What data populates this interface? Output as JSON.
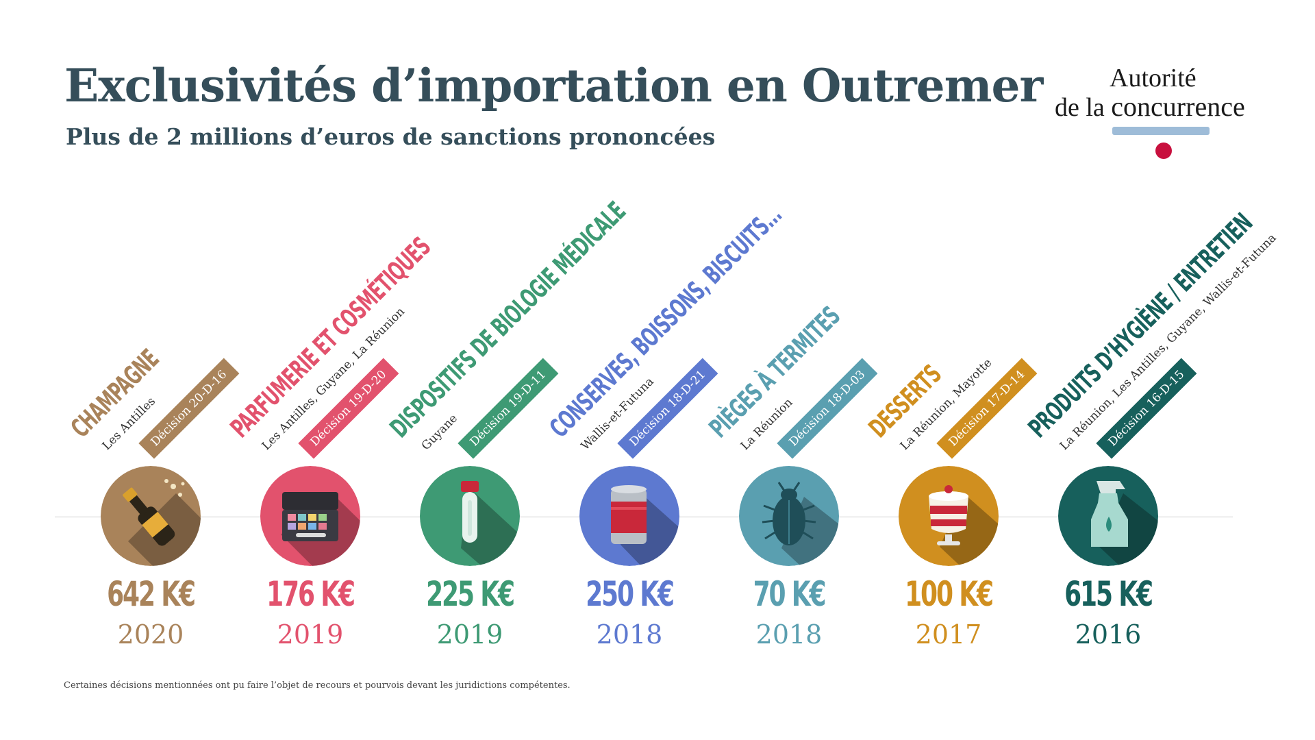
{
  "header": {
    "title": "Exclusivités d’importation en Outremer",
    "subtitle": "Plus de 2 millions d’euros de sanctions prononcées"
  },
  "logo": {
    "line1": "Autorité",
    "line2_small": "de la",
    "line2_big": "concurrence",
    "colors": {
      "bar": "#9ebcd8",
      "dot": "#c8103e"
    }
  },
  "items": [
    {
      "category": "CHAMPAGNE",
      "territory": "Les Antilles",
      "decision": "Décision 20-D-16",
      "amount": "642 K€",
      "year": "2020",
      "color": "#a9835a",
      "icon": "champagne-bottle-icon"
    },
    {
      "category": "PARFUMERIE ET COSMÉTIQUES",
      "territory": "Les Antilles, Guyane, La Réunion",
      "decision": "Décision 19-D-20",
      "amount": "176 K€",
      "year": "2019",
      "color": "#e2526d",
      "icon": "makeup-palette-icon"
    },
    {
      "category": "DISPOSITIFS DE BIOLOGIE MÉDICALE",
      "territory": "Guyane",
      "decision": "Décision 19-D-11",
      "amount": "225 K€",
      "year": "2019",
      "color": "#3e9a74",
      "icon": "test-tube-icon"
    },
    {
      "category": "CONSERVES, BOISSONS, BISCUITS...",
      "territory": "Wallis-et-Futuna",
      "decision": "Décision 18-D-21",
      "amount": "250 K€",
      "year": "2018",
      "color": "#5d79d0",
      "icon": "tin-can-icon"
    },
    {
      "category": "PIÈGES À TERMITES",
      "territory": "La Réunion",
      "decision": "Décision 18-D-03",
      "amount": "70 K€",
      "year": "2018",
      "color": "#5a9fb0",
      "icon": "termite-icon"
    },
    {
      "category": "DESSERTS",
      "territory": "La Réunion, Mayotte",
      "decision": "Décision 17-D-14",
      "amount": "100 K€",
      "year": "2017",
      "color": "#d08f1f",
      "icon": "dessert-cup-icon"
    },
    {
      "category": "PRODUITS D’HYGIÈNE / ENTRETIEN",
      "territory": "La Réunion, Les Antilles, Guyane, Wallis-et-Futuna",
      "decision": "Décision 16-D-15",
      "amount": "615 K€",
      "year": "2016",
      "color": "#17605c",
      "icon": "spray-bottle-icon"
    }
  ],
  "footer": "Certaines décisions mentionnées ont pu faire l’objet de recours et pourvois devant les juridictions compétentes."
}
